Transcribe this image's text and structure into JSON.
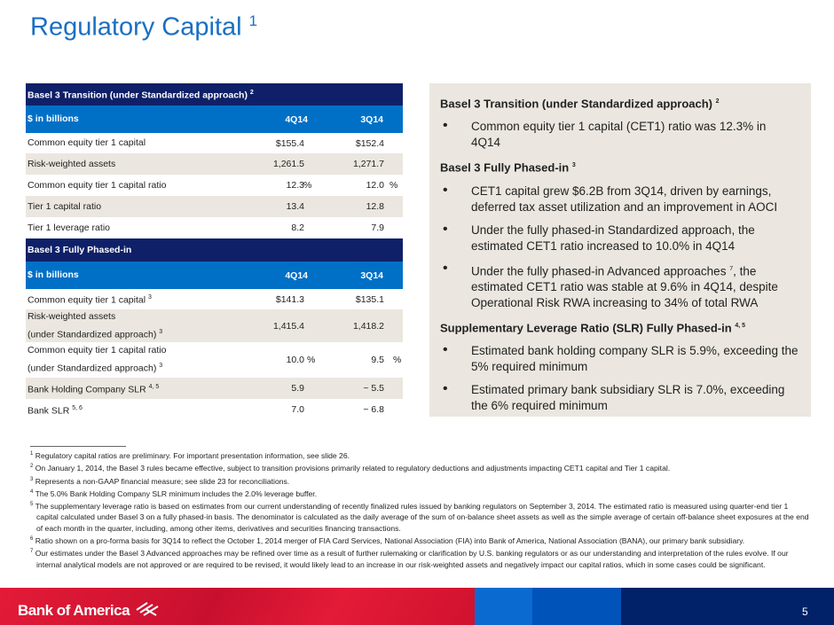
{
  "title": "Regulatory Capital",
  "title_sup": "1",
  "t1": {
    "header": "Basel 3 Transition (under Standardized approach)",
    "header_sup": "2",
    "unit": "$ in billions",
    "col1": "4Q14",
    "col2": "3Q14",
    "rows": [
      {
        "label": "Common equity tier 1 capital",
        "v1": "$155.4",
        "v2": "$152.4"
      },
      {
        "label": "Risk-weighted assets",
        "v1": "1,261.5",
        "v2": "1,271.7"
      },
      {
        "label": "Common equity tier 1 capital ratio",
        "v1": "12.3",
        "v2": "12.0",
        "pct": "%"
      },
      {
        "label": "Tier 1 capital ratio",
        "v1": "13.4",
        "v2": "12.8"
      },
      {
        "label": "Tier 1 leverage ratio",
        "v1": "8.2",
        "v2": "7.9"
      }
    ]
  },
  "t2": {
    "header": "Basel 3 Fully Phased-in",
    "unit": "$ in billions",
    "col1": "4Q14",
    "col2": "3Q14",
    "rows": [
      {
        "label": "Common equity tier 1 capital",
        "sup": "3",
        "v1": "$141.3",
        "v2": "$135.1"
      },
      {
        "label": "Risk-weighted assets",
        "label2": "(under Standardized approach)",
        "sup": "3",
        "v1": "1,415.4",
        "v2": "1,418.2"
      },
      {
        "label": "Common equity tier 1 capital ratio",
        "label2": "(under Standardized approach)",
        "sup": "3",
        "v1": "10.0",
        "v2": "9.5",
        "pct": "%"
      },
      {
        "label": "Bank Holding Company SLR",
        "sup": "4, 5",
        "v1": "5.9",
        "v2": "~ 5.5"
      },
      {
        "label": "Bank SLR",
        "sup": "5, 6",
        "v1": "7.0",
        "v2": "~ 6.8"
      }
    ]
  },
  "panel": {
    "h1": "Basel 3 Transition (under Standardized approach)",
    "h1_sup": "2",
    "b1": "Common equity tier 1 capital (CET1) ratio was 12.3% in 4Q14",
    "h2": "Basel 3 Fully Phased-in",
    "h2_sup": "3",
    "b2": "CET1 capital grew $6.2B from 3Q14, driven by earnings, deferred tax asset utilization and an improvement in AOCI",
    "b3": "Under the fully phased-in Standardized approach, the estimated CET1 ratio increased to 10.0% in 4Q14",
    "b4a": "Under the fully phased-in Advanced approaches",
    "b4_sup": "7",
    "b4b": ", the estimated CET1 ratio was stable at 9.6% in 4Q14, despite Operational Risk RWA increasing to 34% of total RWA",
    "h3": "Supplementary Leverage Ratio (SLR) Fully Phased-in",
    "h3_sup": "4, 5",
    "b5": "Estimated bank holding company SLR is 5.9%, exceeding the 5% required minimum",
    "b6": "Estimated primary bank subsidiary SLR is 7.0%, exceeding the 6% required minimum"
  },
  "footnotes": [
    {
      "n": "1",
      "t": "Regulatory capital ratios are preliminary. For important presentation information, see slide 26."
    },
    {
      "n": "2",
      "t": "On January 1, 2014, the Basel 3 rules became effective, subject to transition provisions primarily related to regulatory deductions and adjustments impacting CET1 capital and Tier 1 capital."
    },
    {
      "n": "3",
      "t": "Represents a non-GAAP financial measure; see slide 23 for reconciliations."
    },
    {
      "n": "4",
      "t": "The 5.0% Bank Holding Company SLR minimum includes the 2.0% leverage buffer."
    },
    {
      "n": "5",
      "t": "The supplementary leverage ratio is based on estimates from our current understanding of recently finalized rules issued by banking regulators on September 3, 2014. The estimated ratio is measured using quarter-end tier 1 capital calculated under Basel 3 on a fully phased-in basis. The denominator is calculated as the daily average of the sum of on-balance sheet assets as well as the simple average of certain off-balance sheet exposures at the end of each month in the quarter, including, among other items, derivatives and securities financing transactions."
    },
    {
      "n": "6",
      "t": "Ratio shown on a pro-forma basis for 3Q14 to reflect the October 1, 2014 merger of FIA Card Services, National Association (FIA) into Bank of America, National Association (BANA), our primary bank subsidiary."
    },
    {
      "n": "7",
      "t": "Our estimates under the Basel 3 Advanced approaches may be refined over time as a result of further rulemaking or clarification by U.S. banking regulators or as our understanding and interpretation of the rules evolve. If our internal analytical models are not approved or are required to be revised, it would likely lead to an increase in our risk-weighted assets and negatively impact our capital ratios, which in some cases could be significant."
    }
  ],
  "logo": "Bank of America",
  "page": "5",
  "colors": {
    "navy": "#0f2068",
    "blue": "#0070c6",
    "red": "#d7142d"
  }
}
